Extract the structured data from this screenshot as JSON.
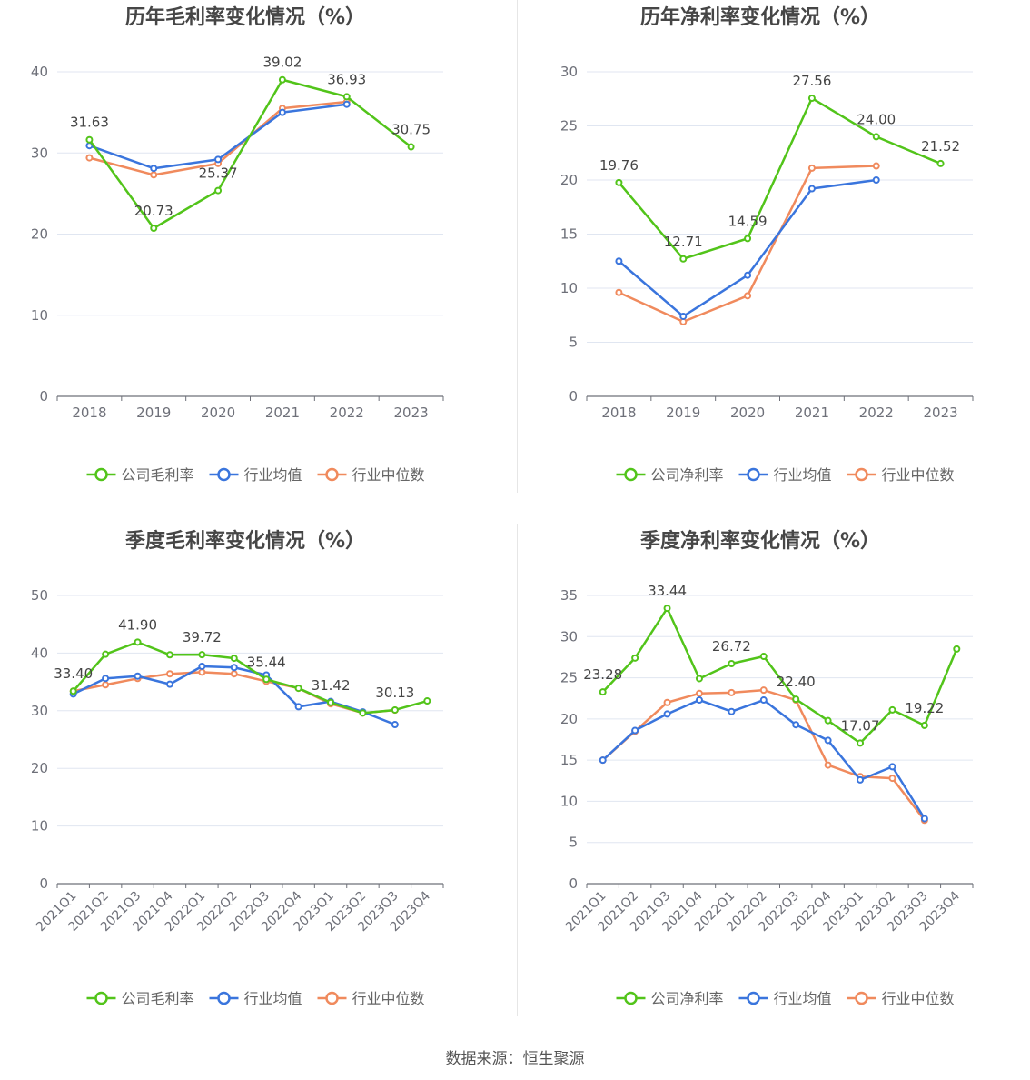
{
  "source": "数据来源：恒生聚源",
  "colors": {
    "company": "#52c41a",
    "avg": "#3a75dd",
    "median": "#f08a5d",
    "axis": "#6e7079",
    "grid": "#e0e6f1",
    "tick": "#6e7079",
    "label": "#444444",
    "title": "#464646"
  },
  "chart_data": [
    {
      "type": "line",
      "title": "历年毛利率变化情况（%）",
      "categories": [
        "2018",
        "2019",
        "2020",
        "2021",
        "2022",
        "2023"
      ],
      "ylim": [
        0,
        40
      ],
      "yticks": [
        0,
        10,
        20,
        30,
        40
      ],
      "grid": true,
      "legend_position": "bottom",
      "series": [
        {
          "name": "公司毛利率",
          "key": "company",
          "values": [
            31.63,
            20.73,
            25.37,
            39.02,
            36.93,
            30.75
          ],
          "labels": [
            "31.63",
            "20.73",
            "25.37",
            "39.02",
            "36.93",
            "30.75"
          ]
        },
        {
          "name": "行业均值",
          "key": "avg",
          "values": [
            30.9,
            28.1,
            29.2,
            35.0,
            36.0,
            null
          ]
        },
        {
          "name": "行业中位数",
          "key": "median",
          "values": [
            29.4,
            27.3,
            28.7,
            35.5,
            36.3,
            null
          ]
        }
      ]
    },
    {
      "type": "line",
      "title": "历年净利率变化情况（%）",
      "categories": [
        "2018",
        "2019",
        "2020",
        "2021",
        "2022",
        "2023"
      ],
      "ylim": [
        0,
        30
      ],
      "yticks": [
        0,
        5,
        10,
        15,
        20,
        25,
        30
      ],
      "grid": true,
      "legend_position": "bottom",
      "series": [
        {
          "name": "公司净利率",
          "key": "company",
          "values": [
            19.76,
            12.71,
            14.59,
            27.56,
            24.0,
            21.52
          ],
          "labels": [
            "19.76",
            "12.71",
            "14.59",
            "27.56",
            "24.00",
            "21.52"
          ]
        },
        {
          "name": "行业均值",
          "key": "avg",
          "values": [
            12.5,
            7.4,
            11.2,
            19.2,
            20.0,
            null
          ]
        },
        {
          "name": "行业中位数",
          "key": "median",
          "values": [
            9.6,
            6.9,
            9.3,
            21.1,
            21.3,
            null
          ]
        }
      ]
    },
    {
      "type": "line",
      "title": "季度毛利率变化情况（%）",
      "categories": [
        "2021Q1",
        "2021Q2",
        "2021Q3",
        "2021Q4",
        "2022Q1",
        "2022Q2",
        "2022Q3",
        "2022Q4",
        "2023Q1",
        "2023Q2",
        "2023Q3",
        "2023Q4"
      ],
      "ylim": [
        0,
        50
      ],
      "yticks": [
        0,
        10,
        20,
        30,
        40,
        50
      ],
      "grid": true,
      "legend_position": "bottom",
      "series": [
        {
          "name": "公司毛利率",
          "key": "company",
          "values": [
            33.4,
            39.8,
            41.9,
            39.7,
            39.72,
            39.1,
            35.44,
            33.9,
            31.42,
            29.6,
            30.13,
            31.7
          ],
          "labels": [
            "33.40",
            "",
            "41.90",
            "",
            "39.72",
            "",
            "35.44",
            "",
            "31.42",
            "",
            "30.13",
            ""
          ]
        },
        {
          "name": "行业均值",
          "key": "avg",
          "values": [
            32.9,
            35.6,
            36.0,
            34.6,
            37.7,
            37.5,
            36.2,
            30.7,
            31.6,
            29.8,
            27.6,
            null
          ]
        },
        {
          "name": "行业中位数",
          "key": "median",
          "values": [
            33.4,
            34.5,
            35.6,
            36.4,
            36.7,
            36.4,
            35.1,
            33.9,
            31.2,
            29.6,
            30.1,
            null
          ]
        }
      ]
    },
    {
      "type": "line",
      "title": "季度净利率变化情况（%）",
      "categories": [
        "2021Q1",
        "2021Q2",
        "2021Q3",
        "2021Q4",
        "2022Q1",
        "2022Q2",
        "2022Q3",
        "2022Q4",
        "2023Q1",
        "2023Q2",
        "2023Q3",
        "2023Q4"
      ],
      "ylim": [
        0,
        35
      ],
      "yticks": [
        0,
        5,
        10,
        15,
        20,
        25,
        30,
        35
      ],
      "grid": true,
      "legend_position": "bottom",
      "series": [
        {
          "name": "公司净利率",
          "key": "company",
          "values": [
            23.28,
            27.4,
            33.44,
            24.9,
            26.72,
            27.6,
            22.4,
            19.8,
            17.07,
            21.1,
            19.22,
            28.5
          ],
          "labels": [
            "23.28",
            "",
            "33.44",
            "",
            "26.72",
            "",
            "22.40",
            "",
            "17.07",
            "",
            "19.22",
            ""
          ]
        },
        {
          "name": "行业均值",
          "key": "avg",
          "values": [
            15.0,
            18.6,
            20.6,
            22.3,
            20.9,
            22.3,
            19.3,
            17.4,
            12.6,
            14.2,
            7.9,
            null
          ]
        },
        {
          "name": "行业中位数",
          "key": "median",
          "values": [
            15.0,
            18.5,
            22.0,
            23.1,
            23.2,
            23.5,
            22.3,
            14.4,
            13.0,
            12.8,
            7.7,
            null
          ]
        }
      ]
    }
  ]
}
